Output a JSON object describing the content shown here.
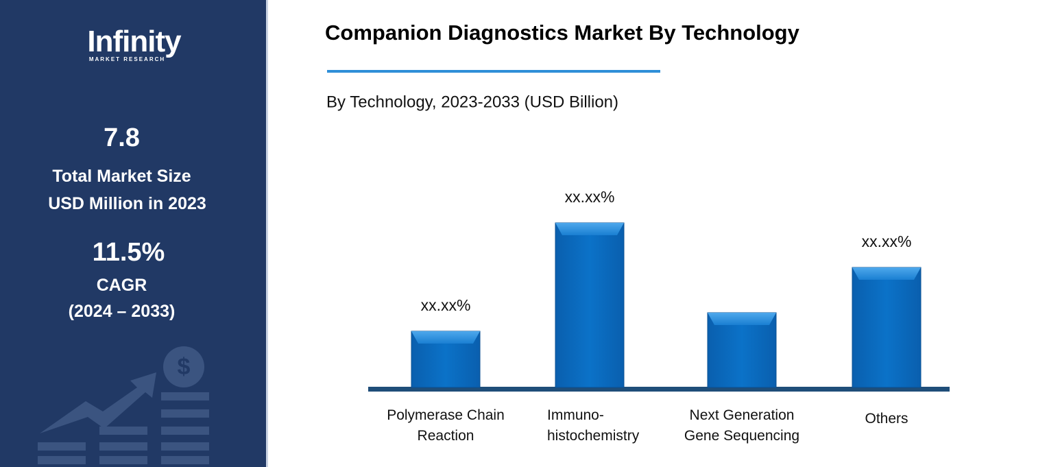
{
  "sidebar": {
    "logo": "Infinity",
    "logo_sub": "MARKET RESEARCH",
    "market_size": "7.8",
    "market_size_label_1": "Total Market Size",
    "market_size_label_2": "USD Million in 2023",
    "cagr": "11.5%",
    "cagr_label": "CAGR",
    "cagr_period": "(2024 – 2033)"
  },
  "chart_data": {
    "type": "bar",
    "title": "Companion Diagnostics Market By Technology",
    "subtitle": "By Technology, 2023-2033 (USD Billion)",
    "categories": [
      "Polymerase Chain Reaction",
      "Immuno-histochemistry",
      "Next Generation Gene Sequencing",
      "Others"
    ],
    "values": [
      82,
      240,
      109,
      175
    ],
    "value_labels": [
      "xx.xx%",
      "xx.xx%",
      null,
      "xx.xx%"
    ],
    "color": "#0a6fc4"
  }
}
